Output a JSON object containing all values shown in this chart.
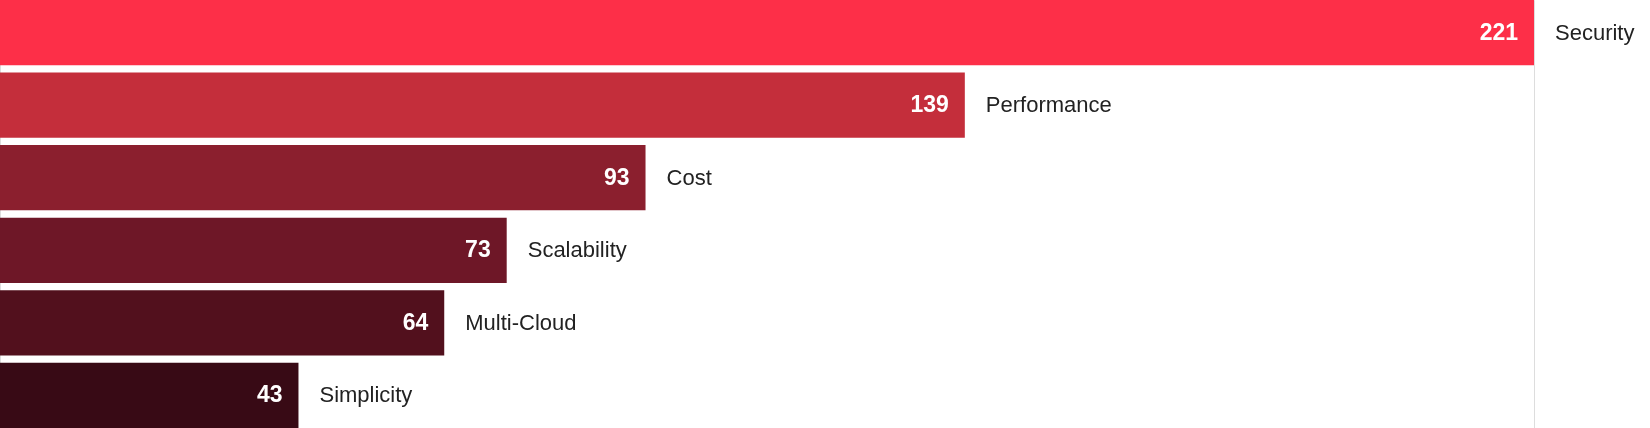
{
  "chart_data": {
    "type": "bar",
    "orientation": "horizontal",
    "categories": [
      "Security",
      "Performance",
      "Cost",
      "Scalability",
      "Multi-Cloud",
      "Simplicity"
    ],
    "values": [
      221,
      139,
      93,
      73,
      64,
      43
    ],
    "colors": [
      "#fd2f48",
      "#c42e3b",
      "#8b1f2e",
      "#6e1727",
      "#52101d",
      "#380a15"
    ],
    "data_labels": true,
    "tick_labels": "y"
  }
}
